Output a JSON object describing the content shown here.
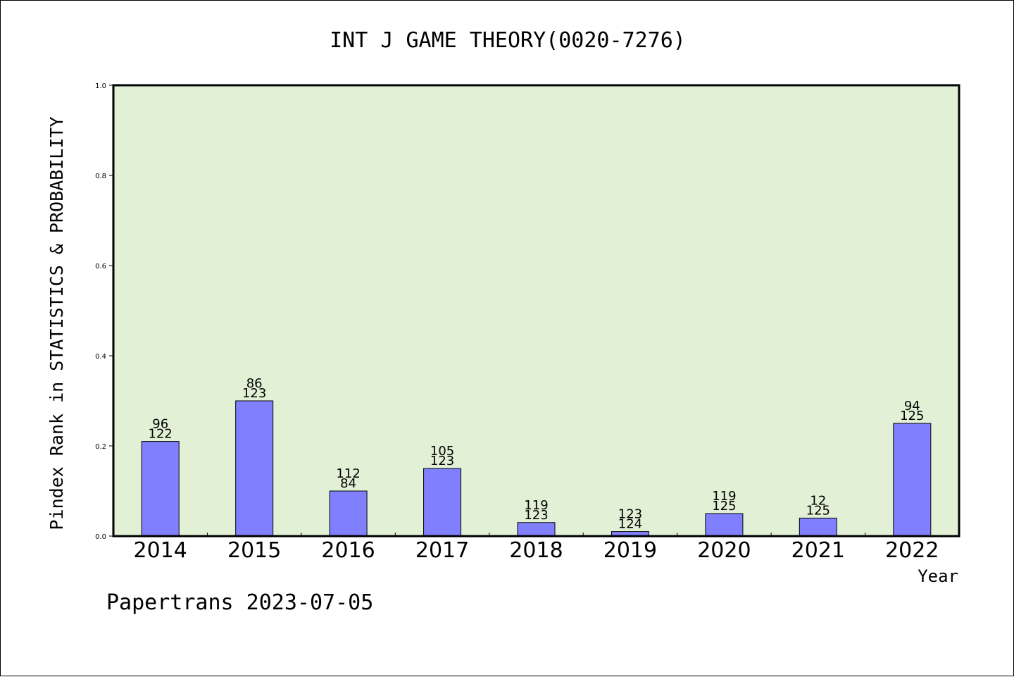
{
  "chart_data": {
    "type": "bar",
    "title": "INT J GAME THEORY(0020-7276)",
    "xlabel": "Year",
    "ylabel": "Pindex Rank in STATISTICS & PROBABILITY",
    "ylim": [
      0,
      1.0
    ],
    "yticks": [
      "0.0",
      "0.2",
      "0.4",
      "0.6",
      "0.8",
      "1.0"
    ],
    "grid": false,
    "categories": [
      "2014",
      "2015",
      "2016",
      "2017",
      "2018",
      "2019",
      "2020",
      "2021",
      "2022"
    ],
    "values": [
      0.21,
      0.3,
      0.1,
      0.15,
      0.03,
      0.01,
      0.05,
      0.04,
      0.25
    ],
    "labels_top": [
      "96",
      "86",
      "112",
      "105",
      "119",
      "123",
      "119",
      "12",
      "94"
    ],
    "labels_bottom": [
      "122",
      "123",
      "84",
      "123",
      "123",
      "124",
      "125",
      "125",
      "125"
    ],
    "colors": {
      "plot_background": "#e2f0d6",
      "bar": "#8080ff",
      "axis": "#000000"
    }
  },
  "footer": "Papertrans 2023-07-05"
}
